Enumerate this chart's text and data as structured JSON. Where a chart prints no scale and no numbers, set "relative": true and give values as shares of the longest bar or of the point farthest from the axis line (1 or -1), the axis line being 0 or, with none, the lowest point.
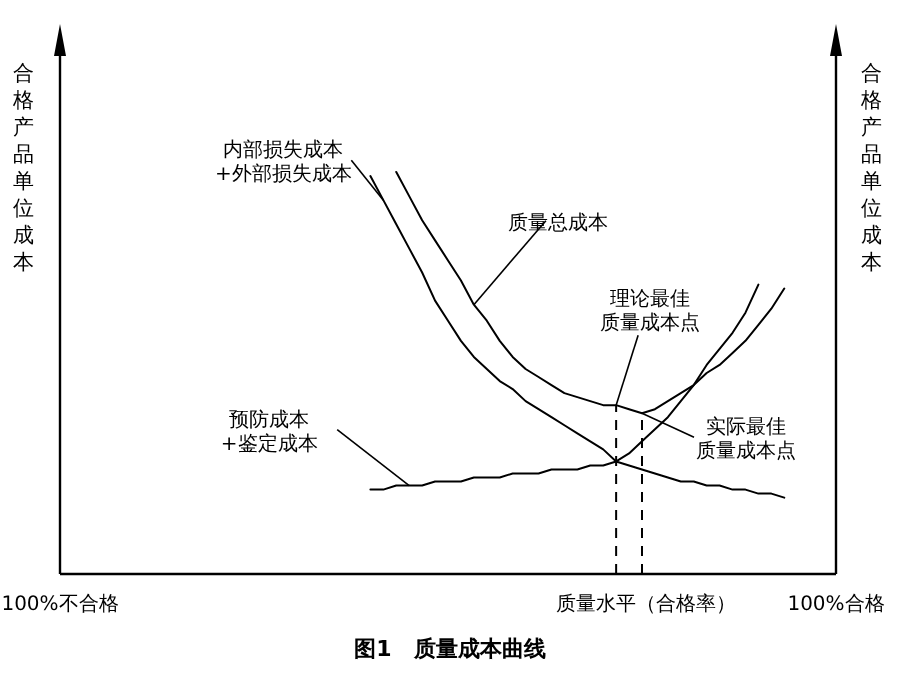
{
  "chart_data": {
    "type": "line",
    "title": "图1　质量成本曲线",
    "xlabel": "质量水平（合格率）",
    "ylabel": "合格产品单位成本",
    "y2label": "合格产品单位成本",
    "relative": true,
    "categories": [
      "100%不合格",
      null,
      null,
      null,
      null,
      null,
      null,
      null,
      null,
      null,
      null,
      null,
      null,
      null,
      null,
      null,
      null,
      null,
      null,
      null,
      null,
      null,
      null,
      null,
      null,
      null,
      null,
      null,
      null,
      null,
      null,
      null,
      null,
      null,
      null,
      null,
      null,
      null,
      null,
      null,
      null,
      null,
      null,
      null,
      null,
      null,
      null,
      null,
      null,
      null,
      null,
      null,
      null,
      null,
      null,
      null,
      null,
      null,
      null,
      null,
      "100%合格"
    ],
    "series": [
      {
        "color": "#000000",
        "values": [
          null,
          null,
          null,
          null,
          null,
          null,
          null,
          null,
          null,
          null,
          null,
          null,
          null,
          null,
          null,
          null,
          null,
          null,
          null,
          null,
          null,
          null,
          null,
          null,
          0.99,
          0.93,
          0.87,
          0.81,
          0.75,
          0.68,
          0.63,
          0.58,
          0.54,
          0.51,
          0.48,
          0.46,
          0.43,
          0.41,
          0.39,
          0.37,
          0.35,
          0.33,
          0.31,
          0.28,
          0.27,
          0.26,
          0.25,
          0.24,
          0.23,
          0.23,
          0.22,
          0.22,
          0.21,
          0.21,
          0.2,
          0.2,
          0.19,
          null,
          null,
          null,
          null
        ]
      },
      {
        "color": "#000000",
        "values": [
          null,
          null,
          null,
          null,
          null,
          null,
          null,
          null,
          null,
          null,
          null,
          null,
          null,
          null,
          null,
          null,
          null,
          null,
          null,
          null,
          null,
          null,
          null,
          null,
          null,
          null,
          1.0,
          0.94,
          0.88,
          0.83,
          0.78,
          0.73,
          0.67,
          0.63,
          0.58,
          0.54,
          0.51,
          0.49,
          0.47,
          0.45,
          0.44,
          0.43,
          0.42,
          0.42,
          0.41,
          0.4,
          0.41,
          0.43,
          0.45,
          0.47,
          0.5,
          0.52,
          0.55,
          0.58,
          0.62,
          0.66,
          0.71,
          null,
          null,
          null,
          null
        ]
      },
      {
        "color": "#000000",
        "values": [
          null,
          null,
          null,
          null,
          null,
          null,
          null,
          null,
          null,
          null,
          null,
          null,
          null,
          null,
          null,
          null,
          null,
          null,
          null,
          null,
          null,
          null,
          null,
          null,
          0.21,
          0.21,
          0.22,
          0.22,
          0.22,
          0.23,
          0.23,
          0.23,
          0.24,
          0.24,
          0.24,
          0.25,
          0.25,
          0.25,
          0.26,
          0.26,
          0.26,
          0.27,
          0.27,
          0.28,
          0.3,
          0.33,
          0.36,
          0.39,
          0.43,
          0.47,
          0.52,
          0.56,
          0.6,
          0.65,
          0.72,
          null,
          null,
          null,
          null,
          null,
          null
        ]
      }
    ],
    "annotations": [
      "内部损失成本\n+外部损失成本",
      "质量总成本",
      "理论最佳质量成本点",
      "实际最佳质量成本点",
      "预防成本\n+鉴定成本"
    ]
  }
}
